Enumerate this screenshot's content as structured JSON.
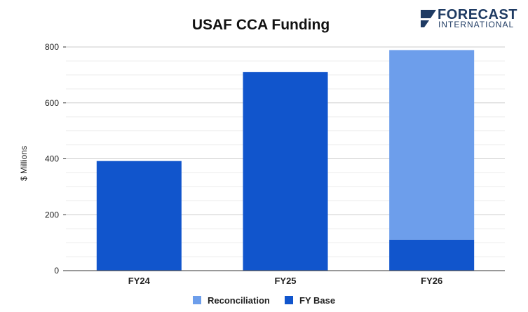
{
  "logo": {
    "line1": "FORECAST",
    "line2": "INTERNATIONAL",
    "color": "#1f3b63"
  },
  "chart_data": {
    "type": "bar",
    "stacked": true,
    "title": "USAF CCA Funding",
    "xlabel": "",
    "ylabel": "$ Millions",
    "categories": [
      "FY24",
      "FY25",
      "FY26"
    ],
    "series": [
      {
        "name": "FY Base",
        "values": [
          392,
          710,
          111
        ],
        "color": "#1155cc"
      },
      {
        "name": "Reconciliation",
        "values": [
          0,
          0,
          678
        ],
        "color": "#6d9eeb"
      }
    ],
    "ylim": [
      0,
      800
    ],
    "yticks": [
      "0",
      "200",
      "400",
      "600",
      "800"
    ],
    "grid": true,
    "legend_position": "bottom",
    "legend_order": [
      "Reconciliation",
      "FY Base"
    ]
  }
}
